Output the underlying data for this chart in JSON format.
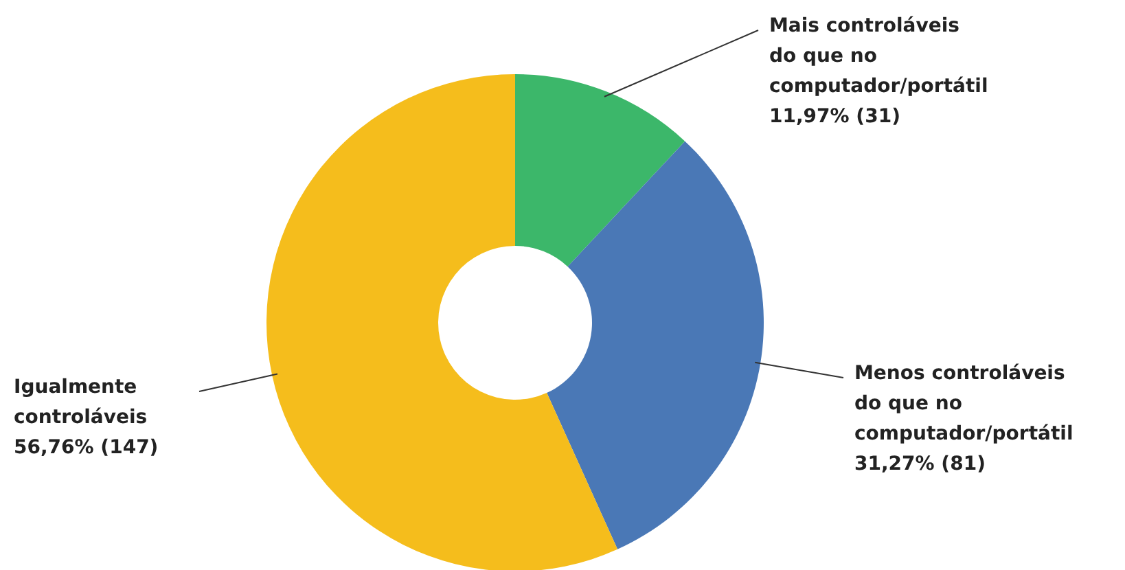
{
  "chart_data": {
    "type": "donut",
    "categories": [
      "Mais controláveis do que no computador/portátil",
      "Menos controláveis do que no computador/portátil",
      "Igualmente controláveis"
    ],
    "values": [
      31,
      81,
      147
    ],
    "value_labels": [
      "11,97% (31)",
      "31,27% (81)",
      "56,76% (147)"
    ],
    "colors": [
      "#3cb76a",
      "#4a78b6",
      "#f5bd1c"
    ]
  }
}
